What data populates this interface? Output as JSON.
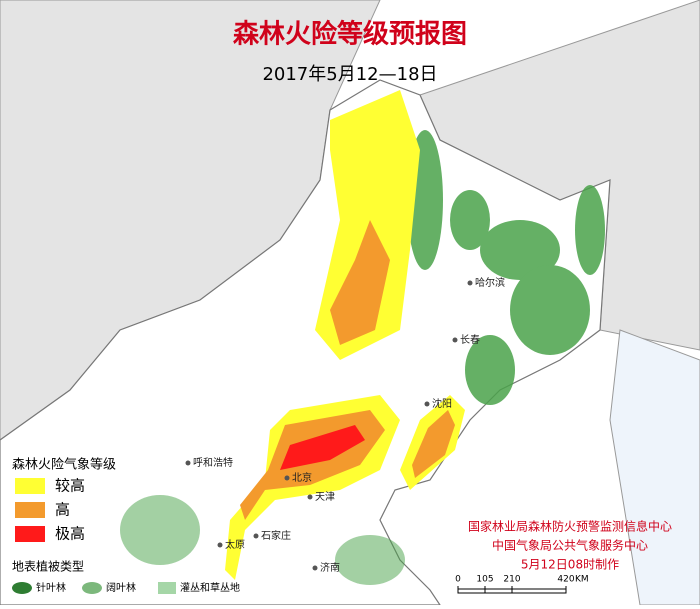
{
  "header": {
    "title": "森林火险等级预报图",
    "subtitle": "2017年5月12—18日"
  },
  "legend": {
    "title": "森林火险气象等级",
    "items": [
      {
        "label": "较高",
        "color": "#ffff33"
      },
      {
        "label": "高",
        "color": "#f39a2d"
      },
      {
        "label": "极高",
        "color": "#ff1a1a"
      }
    ]
  },
  "vegetation": {
    "title": "地表植被类型",
    "items": [
      "针叶林",
      "阔叶林",
      "灌丛和草丛地"
    ]
  },
  "cities": [
    "哈尔滨",
    "长春",
    "沈阳",
    "呼和浩特",
    "北京",
    "天津",
    "石家庄",
    "太原",
    "济南"
  ],
  "credits": [
    "国家林业局森林防火预警监测信息中心",
    "中国气象局公共气象服务中心",
    "5月12日08时制作"
  ],
  "scale": {
    "ticks": [
      0,
      105,
      210,
      420
    ],
    "unit": "KM"
  }
}
